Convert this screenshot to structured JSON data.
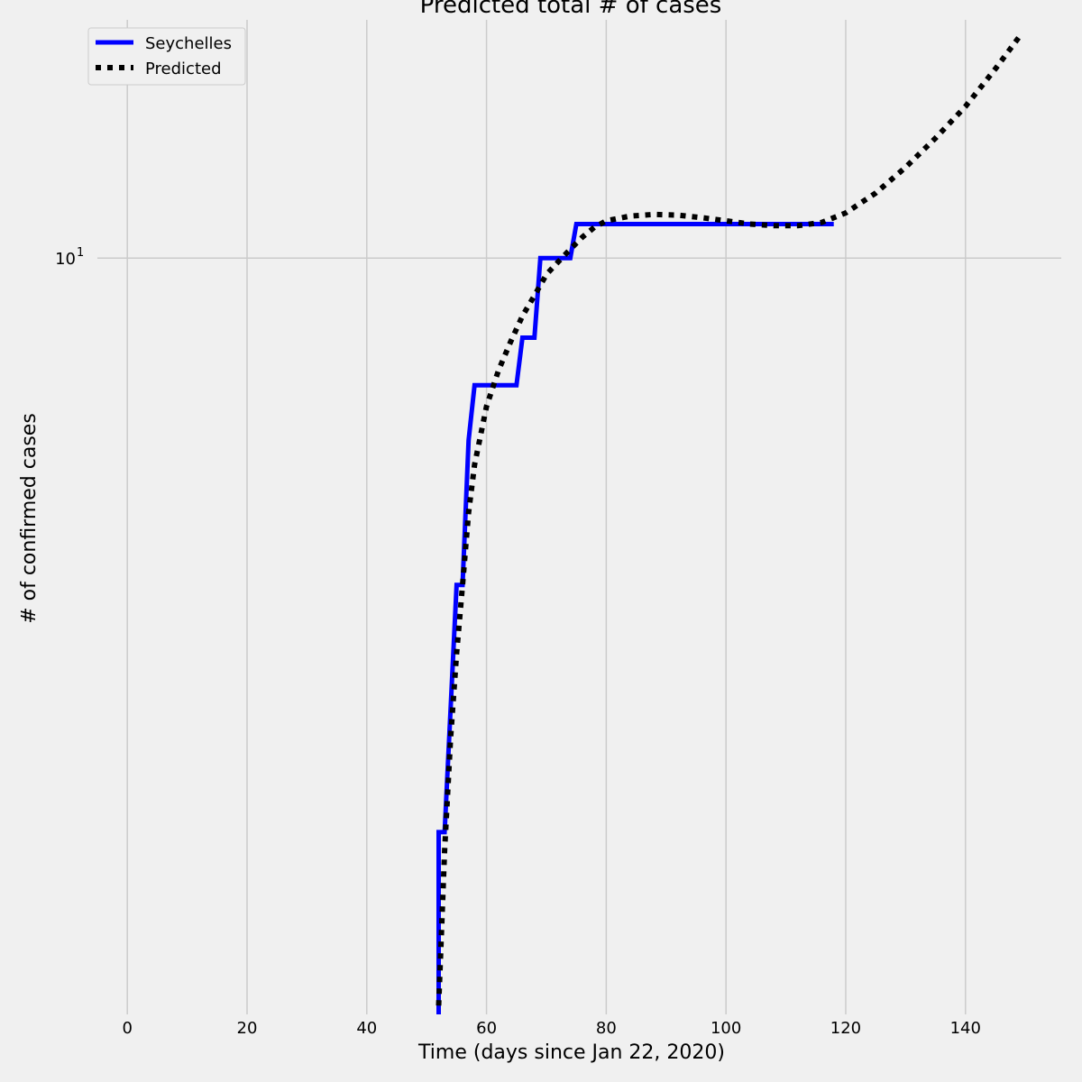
{
  "chart_data": {
    "type": "line",
    "title": "Predicted total # of cases",
    "xlabel": "Time (days since Jan 22, 2020)",
    "ylabel": "# of confirmed cases",
    "xlim": [
      -5,
      156
    ],
    "ylim": [
      1.2,
      19.5
    ],
    "y_scale": "log",
    "xticks": [
      0,
      20,
      40,
      60,
      80,
      100,
      120,
      140
    ],
    "yticks": [
      {
        "value": 10,
        "label_base": "10",
        "label_exp": "1"
      }
    ],
    "grid": true,
    "legend_position": "top-left",
    "series": [
      {
        "name": "Seychelles",
        "color": "#0000ff",
        "style": "solid",
        "x": [
          52,
          52,
          53,
          55,
          56,
          57,
          58,
          59,
          60,
          61,
          62,
          63,
          64,
          65,
          66,
          67,
          68,
          69,
          70,
          71,
          72,
          73,
          74,
          75,
          80,
          90,
          100,
          110,
          118
        ],
        "y": [
          1,
          2,
          2,
          4,
          4,
          6,
          7,
          7,
          7,
          7,
          7,
          7,
          7,
          7,
          8,
          8,
          8,
          10,
          10,
          10,
          10,
          10,
          10,
          11,
          11,
          11,
          11,
          11,
          11
        ]
      },
      {
        "name": "Predicted",
        "color": "#000000",
        "style": "dotted",
        "x": [
          52,
          53,
          54,
          55,
          56,
          57,
          58,
          60,
          62,
          64,
          66,
          68,
          70,
          72,
          74,
          76,
          78,
          80,
          84,
          88,
          92,
          96,
          100,
          104,
          108,
          112,
          116,
          120,
          125,
          130,
          135,
          140,
          145,
          149
        ],
        "y": [
          1.23,
          1.9,
          2.6,
          3.3,
          4.0,
          4.9,
          5.6,
          6.6,
          7.3,
          7.9,
          8.5,
          9.0,
          9.55,
          9.9,
          10.25,
          10.6,
          10.9,
          11.1,
          11.25,
          11.3,
          11.28,
          11.2,
          11.1,
          11.0,
          10.95,
          10.95,
          11.05,
          11.35,
          12.0,
          12.9,
          14.0,
          15.3,
          17.0,
          18.6
        ]
      }
    ]
  }
}
